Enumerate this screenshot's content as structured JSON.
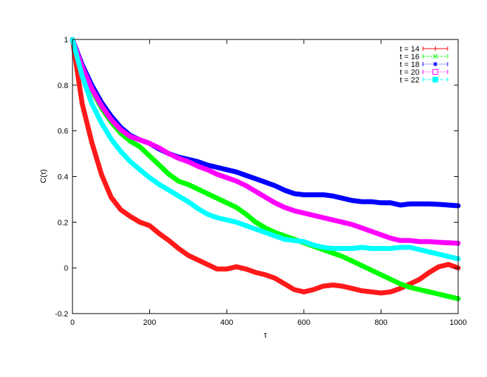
{
  "chart_data": {
    "type": "line",
    "title": "",
    "xlabel": "τ",
    "ylabel": "C(τ)",
    "xlim": [
      0,
      1000
    ],
    "ylim": [
      -0.2,
      1
    ],
    "xticks": [
      0,
      200,
      400,
      600,
      800,
      1000
    ],
    "xtick_labels": [
      "0",
      "200",
      "400",
      "600",
      "800",
      "1000"
    ],
    "yticks": [
      -0.2,
      0,
      0.2,
      0.4,
      0.6,
      0.8,
      1
    ],
    "ytick_labels": [
      "-0.2",
      "0",
      "0.2",
      "0.4",
      "0.6",
      "0.8",
      "1"
    ],
    "grid": false,
    "legend_position": "top-right",
    "x": [
      0,
      25,
      50,
      75,
      100,
      125,
      150,
      175,
      200,
      225,
      250,
      275,
      300,
      325,
      350,
      375,
      400,
      425,
      450,
      475,
      500,
      525,
      550,
      575,
      600,
      625,
      650,
      675,
      700,
      725,
      750,
      775,
      800,
      825,
      850,
      875,
      900,
      925,
      950,
      975,
      1000
    ],
    "series": [
      {
        "name": "t = 14",
        "color": "#ff0000",
        "marker": "plus",
        "values": [
          1.0,
          0.72,
          0.55,
          0.41,
          0.31,
          0.255,
          0.225,
          0.2,
          0.185,
          0.15,
          0.12,
          0.085,
          0.055,
          0.035,
          0.015,
          -0.005,
          -0.005,
          0.005,
          -0.005,
          -0.02,
          -0.03,
          -0.045,
          -0.07,
          -0.095,
          -0.105,
          -0.095,
          -0.08,
          -0.075,
          -0.08,
          -0.09,
          -0.1,
          -0.105,
          -0.11,
          -0.105,
          -0.09,
          -0.07,
          -0.05,
          -0.02,
          0.005,
          0.015,
          0.0
        ]
      },
      {
        "name": "t = 16",
        "color": "#00ff00",
        "marker": "x",
        "values": [
          1.0,
          0.87,
          0.78,
          0.7,
          0.64,
          0.59,
          0.555,
          0.53,
          0.49,
          0.45,
          0.41,
          0.38,
          0.365,
          0.345,
          0.325,
          0.305,
          0.285,
          0.265,
          0.235,
          0.2,
          0.175,
          0.155,
          0.14,
          0.125,
          0.11,
          0.095,
          0.08,
          0.065,
          0.05,
          0.03,
          0.01,
          -0.01,
          -0.03,
          -0.05,
          -0.07,
          -0.085,
          -0.095,
          -0.105,
          -0.115,
          -0.125,
          -0.135
        ]
      },
      {
        "name": "t = 18",
        "color": "#0000ff",
        "marker": "star",
        "values": [
          1.0,
          0.89,
          0.8,
          0.725,
          0.665,
          0.615,
          0.58,
          0.56,
          0.545,
          0.52,
          0.5,
          0.485,
          0.475,
          0.465,
          0.45,
          0.44,
          0.43,
          0.42,
          0.405,
          0.39,
          0.375,
          0.36,
          0.34,
          0.325,
          0.32,
          0.32,
          0.32,
          0.315,
          0.305,
          0.295,
          0.29,
          0.29,
          0.285,
          0.285,
          0.275,
          0.28,
          0.28,
          0.28,
          0.278,
          0.275,
          0.272
        ]
      },
      {
        "name": "t = 20",
        "color": "#ff00ff",
        "marker": "open-square",
        "values": [
          1.0,
          0.88,
          0.785,
          0.71,
          0.65,
          0.605,
          0.575,
          0.56,
          0.545,
          0.525,
          0.5,
          0.48,
          0.465,
          0.445,
          0.43,
          0.41,
          0.395,
          0.38,
          0.36,
          0.335,
          0.31,
          0.285,
          0.265,
          0.25,
          0.24,
          0.23,
          0.22,
          0.21,
          0.2,
          0.19,
          0.175,
          0.16,
          0.145,
          0.13,
          0.12,
          0.12,
          0.115,
          0.115,
          0.112,
          0.11,
          0.108
        ]
      },
      {
        "name": "t = 22",
        "color": "#00ffff",
        "marker": "filled-square",
        "values": [
          1.0,
          0.84,
          0.72,
          0.635,
          0.565,
          0.51,
          0.465,
          0.43,
          0.395,
          0.365,
          0.34,
          0.315,
          0.29,
          0.26,
          0.235,
          0.22,
          0.21,
          0.2,
          0.185,
          0.17,
          0.155,
          0.14,
          0.125,
          0.12,
          0.115,
          0.1,
          0.09,
          0.085,
          0.085,
          0.085,
          0.09,
          0.085,
          0.085,
          0.085,
          0.09,
          0.09,
          0.08,
          0.07,
          0.06,
          0.05,
          0.04
        ]
      }
    ]
  },
  "legend": {
    "items": [
      {
        "label": "t = 14",
        "color": "#ff0000",
        "marker": "plus",
        "dash": "solid"
      },
      {
        "label": "t = 16",
        "color": "#00ff00",
        "marker": "x",
        "dash": "dashed"
      },
      {
        "label": "t = 18",
        "color": "#0000ff",
        "marker": "star",
        "dash": "dotted"
      },
      {
        "label": "t = 20",
        "color": "#ff00ff",
        "marker": "open-square",
        "dash": "dotted"
      },
      {
        "label": "t = 22",
        "color": "#00ffff",
        "marker": "filled-square",
        "dash": "dashdot"
      }
    ]
  },
  "axes": {
    "xlabel": "τ",
    "ylabel": "C(τ)"
  }
}
